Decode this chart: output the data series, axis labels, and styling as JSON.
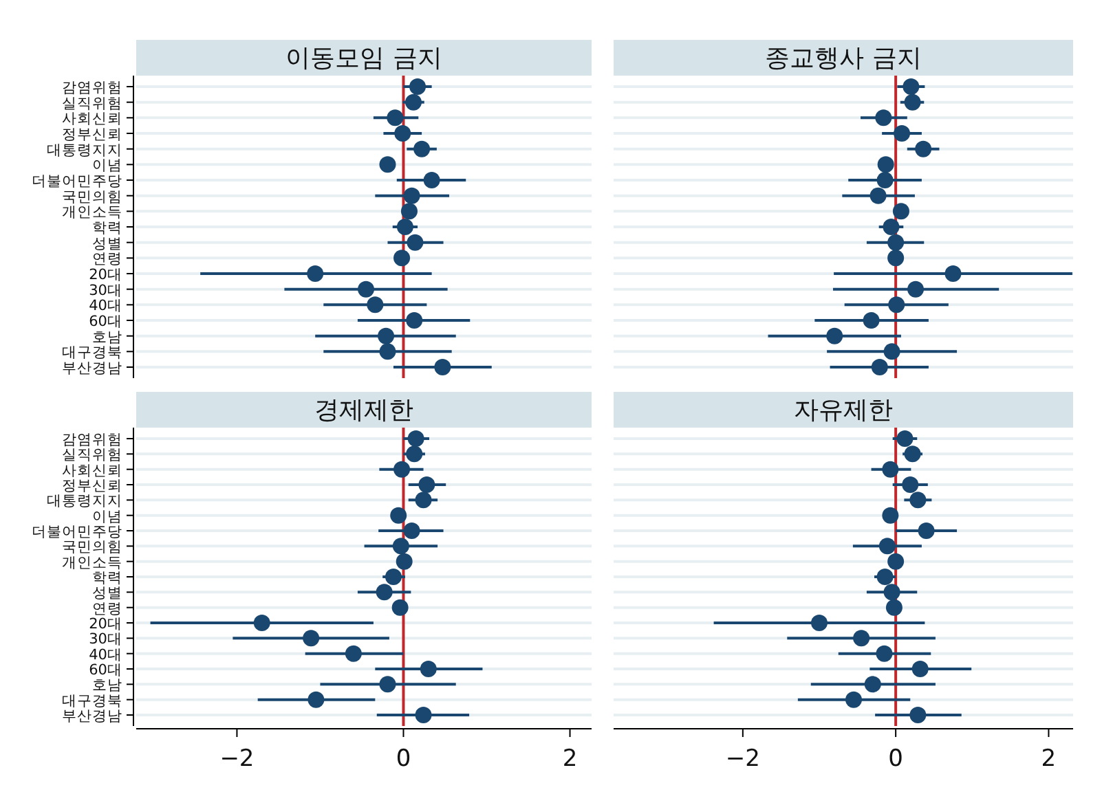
{
  "chart_data": [
    {
      "type": "scatter",
      "title": "이동모임 금지",
      "orientation": "horizontal",
      "categories": [
        "감염위험",
        "실직위험",
        "사회신뢰",
        "정부신뢰",
        "대통령지지",
        "이념",
        "더불어민주당",
        "국민의힘",
        "개인소득",
        "학력",
        "성별",
        "연령",
        "20대",
        "30대",
        "40대",
        "60대",
        "호남",
        "대구경북",
        "부산경남"
      ],
      "xlim": [
        -3.21,
        2.26
      ],
      "tick_labels": "y",
      "grid": "y",
      "marker": "circle",
      "ref_lines": [
        {
          "axis": "x",
          "value": 0,
          "color": "#c0282d"
        }
      ],
      "series": [
        {
          "color": "#1a476f",
          "values": [
            0.17,
            0.12,
            -0.1,
            -0.01,
            0.22,
            -0.19,
            0.34,
            0.1,
            0.07,
            0.02,
            0.14,
            -0.02,
            -1.06,
            -0.45,
            -0.34,
            0.13,
            -0.21,
            -0.19,
            0.47
          ],
          "errors": [
            [
              0.0,
              0.34
            ],
            [
              -0.01,
              0.25
            ],
            [
              -0.36,
              0.18
            ],
            [
              -0.24,
              0.22
            ],
            [
              0.04,
              0.4
            ],
            [
              -0.26,
              -0.12
            ],
            [
              -0.08,
              0.75
            ],
            [
              -0.34,
              0.55
            ],
            [
              0.0,
              0.14
            ],
            [
              -0.13,
              0.17
            ],
            [
              -0.19,
              0.48
            ],
            null,
            [
              -2.44,
              0.34
            ],
            [
              -1.43,
              0.53
            ],
            [
              -0.96,
              0.28
            ],
            [
              -0.55,
              0.8
            ],
            [
              -1.06,
              0.63
            ],
            [
              -0.96,
              0.58
            ],
            [
              -0.12,
              1.06
            ]
          ]
        }
      ]
    },
    {
      "type": "scatter",
      "title": "종교행사 금지",
      "orientation": "horizontal",
      "categories": [
        null,
        null,
        null,
        null,
        null,
        null,
        null,
        null,
        null,
        null,
        null,
        null,
        null,
        null,
        null,
        null,
        null,
        null,
        null
      ],
      "xlim": [
        -3.69,
        2.32
      ],
      "tick_labels": false,
      "grid": "y",
      "marker": "circle",
      "ref_lines": [
        {
          "axis": "x",
          "value": 0,
          "color": "#c0282d"
        }
      ],
      "series": [
        {
          "color": "#1a476f",
          "values": [
            0.2,
            0.22,
            -0.16,
            0.08,
            0.36,
            -0.13,
            -0.14,
            -0.23,
            0.07,
            -0.06,
            0.0,
            0.0,
            0.75,
            0.26,
            0.01,
            -0.32,
            -0.8,
            -0.05,
            -0.21
          ],
          "errors": [
            [
              0.02,
              0.38
            ],
            [
              0.06,
              0.37
            ],
            [
              -0.46,
              0.15
            ],
            [
              -0.18,
              0.34
            ],
            [
              0.15,
              0.57
            ],
            [
              -0.22,
              -0.04
            ],
            [
              -0.62,
              0.34
            ],
            [
              -0.7,
              0.25
            ],
            [
              -0.03,
              0.16
            ],
            [
              -0.22,
              0.1
            ],
            [
              -0.38,
              0.37
            ],
            null,
            [
              -0.81,
              2.31
            ],
            [
              -0.82,
              1.35
            ],
            [
              -0.67,
              0.69
            ],
            [
              -1.06,
              0.43
            ],
            [
              -1.67,
              0.07
            ],
            [
              -0.9,
              0.8
            ],
            [
              -0.86,
              0.43
            ]
          ]
        }
      ]
    },
    {
      "type": "scatter",
      "title": "경제제한",
      "orientation": "horizontal",
      "categories": [
        "감염위험",
        "실직위험",
        "사회신뢰",
        "정부신뢰",
        "대통령지지",
        "이념",
        "더불어민주당",
        "국민의힘",
        "개인소득",
        "학력",
        "성별",
        "연령",
        "20대",
        "30대",
        "40대",
        "60대",
        "호남",
        "대구경북",
        "부산경남"
      ],
      "xlim": [
        -3.21,
        2.26
      ],
      "xticks": [
        -2,
        0,
        2
      ],
      "grid": "y",
      "marker": "circle",
      "ref_lines": [
        {
          "axis": "x",
          "value": 0,
          "color": "#c0282d"
        }
      ],
      "series": [
        {
          "color": "#1a476f",
          "values": [
            0.15,
            0.13,
            -0.02,
            0.28,
            0.24,
            -0.06,
            0.1,
            -0.03,
            0.01,
            -0.12,
            -0.23,
            -0.04,
            -1.7,
            -1.11,
            -0.6,
            0.3,
            -0.19,
            -1.05,
            0.24
          ],
          "errors": [
            [
              0.0,
              0.31
            ],
            [
              0.0,
              0.26
            ],
            [
              -0.29,
              0.24
            ],
            [
              0.06,
              0.51
            ],
            [
              0.06,
              0.41
            ],
            [
              -0.13,
              0.02
            ],
            [
              -0.3,
              0.48
            ],
            [
              -0.47,
              0.41
            ],
            [
              -0.06,
              0.08
            ],
            [
              -0.25,
              0.02
            ],
            [
              -0.55,
              0.09
            ],
            null,
            [
              -3.04,
              -0.36
            ],
            [
              -2.05,
              -0.17
            ],
            [
              -1.18,
              0.0
            ],
            [
              -0.34,
              0.95
            ],
            [
              -1.0,
              0.63
            ],
            [
              -1.75,
              -0.34
            ],
            [
              -0.32,
              0.79
            ]
          ]
        }
      ]
    },
    {
      "type": "scatter",
      "title": "자유제한",
      "orientation": "horizontal",
      "categories": [
        null,
        null,
        null,
        null,
        null,
        null,
        null,
        null,
        null,
        null,
        null,
        null,
        null,
        null,
        null,
        null,
        null,
        null,
        null
      ],
      "xlim": [
        -3.69,
        2.32
      ],
      "xticks": [
        -2,
        0,
        2
      ],
      "tick_labels": "x",
      "grid": "y",
      "marker": "circle",
      "ref_lines": [
        {
          "axis": "x",
          "value": 0,
          "color": "#c0282d"
        }
      ],
      "series": [
        {
          "color": "#1a476f",
          "values": [
            0.12,
            0.22,
            -0.07,
            0.19,
            0.29,
            -0.07,
            0.4,
            -0.11,
            0.0,
            -0.14,
            -0.05,
            -0.02,
            -1.0,
            -0.45,
            -0.15,
            0.32,
            -0.3,
            -0.55,
            0.29
          ],
          "errors": [
            [
              -0.04,
              0.28
            ],
            [
              0.09,
              0.35
            ],
            [
              -0.32,
              0.2
            ],
            [
              -0.04,
              0.42
            ],
            [
              0.11,
              0.47
            ],
            null,
            [
              0.0,
              0.8
            ],
            [
              -0.56,
              0.34
            ],
            null,
            [
              -0.28,
              0.0
            ],
            [
              -0.38,
              0.28
            ],
            null,
            [
              -2.38,
              0.38
            ],
            [
              -1.42,
              0.52
            ],
            [
              -0.75,
              0.46
            ],
            [
              -0.34,
              0.99
            ],
            [
              -1.11,
              0.52
            ],
            [
              -1.28,
              0.19
            ],
            [
              -0.27,
              0.86
            ]
          ]
        }
      ]
    }
  ]
}
